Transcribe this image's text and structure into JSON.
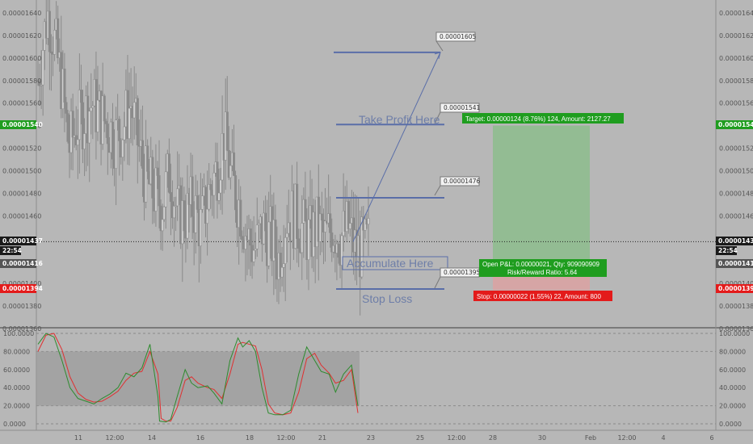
{
  "colors": {
    "background": "#b7b7b7",
    "candle": "#8a8a8a",
    "level_line": "#5a6ea8",
    "profit_zone": "#8fbc8f",
    "loss_zone": "#d9a3a3",
    "target_box": "#1f9d1f",
    "stop_box": "#e31b1b",
    "stoch_k": "#2e8b2e",
    "stoch_d": "#e03030",
    "stoch_band": "#9a9a9a"
  },
  "price_axis": {
    "left_labels": [
      "0.00001640",
      "0.00001620",
      "0.00001600",
      "0.00001580",
      "0.00001560",
      "0.00001540",
      "0.00001520",
      "0.00001500",
      "0.00001480",
      "0.00001460",
      "0.00001437",
      "0.00001416",
      "0.00001400",
      "0.00001394",
      "0.00001380",
      "0.00001360"
    ],
    "right_labels": [
      "0.00001640",
      "0.00001620",
      "0.00001600",
      "0.00001580",
      "0.00001560",
      "0.00001540",
      "0.00001520",
      "0.00001500",
      "0.00001480",
      "0.00001460",
      "0.00001437",
      "0.00001416",
      "0.00001400",
      "0.00001394",
      "0.00001380",
      "0.00001360"
    ],
    "last_price_tag": "0.00001437",
    "time_tag": "22:54",
    "open_price_tag": "0.00001416",
    "target_tag": "0.00001540",
    "stop_tag": "0.00001394"
  },
  "time_axis": {
    "labels": [
      "11",
      "12:00",
      "14",
      "16",
      "18",
      "12:00",
      "21",
      "23",
      "25",
      "12:00",
      "28",
      "30",
      "Feb",
      "12:00",
      "4",
      "6"
    ]
  },
  "annotations": {
    "take_profit_text": "Take Profit Here",
    "accumulate_text": "Accumulate Here",
    "stop_loss_text": "Stop Loss",
    "callout_1605": "0.00001605",
    "callout_1541": "0.00001541",
    "callout_1476": "0.00001476",
    "callout_1395": "0.00001395",
    "target_label": "Target: 0.00000124 (8.76%) 124, Amount: 2127.27",
    "open_pl_label": "Open P&L: 0.00000021, Qty: 909090909",
    "risk_reward_label": "Risk/Reward Ratio: 5.64",
    "stop_label": "Stop: 0.00000022 (1.55%) 22, Amount: 800"
  },
  "oscillator_axis": {
    "left_labels": [
      "100.0000",
      "80.0000",
      "60.0000",
      "40.0000",
      "20.0000",
      "0.0000"
    ],
    "right_labels": [
      "100.0000",
      "80.0000",
      "60.0000",
      "40.0000",
      "20.0000",
      "0.0000"
    ]
  },
  "chart_data": {
    "type": "candlestick",
    "price_levels": {
      "last_price": 1.437e-05,
      "entry": 1.416e-05,
      "target": 1.54e-05,
      "stop": 1.394e-05,
      "level_lines": [
        1.605e-05,
        1.541e-05,
        1.476e-05,
        1.395e-05
      ],
      "accumulate_zone": [
        1.416e-05,
        1.428e-05
      ],
      "ylim": [
        1.355e-05,
        1.65e-05
      ]
    },
    "price_close_path": [
      [
        0.0,
        1.58e-05
      ],
      [
        0.6,
        1.64e-05
      ],
      [
        1.0,
        1.62e-05
      ],
      [
        1.5,
        1.58e-05
      ],
      [
        2.0,
        1.52e-05
      ],
      [
        2.5,
        1.54e-05
      ],
      [
        3.0,
        1.55e-05
      ],
      [
        3.5,
        1.56e-05
      ],
      [
        4.0,
        1.55e-05
      ],
      [
        4.5,
        1.54e-05
      ],
      [
        5.0,
        1.53e-05
      ],
      [
        5.5,
        1.54e-05
      ],
      [
        6.0,
        1.56e-05
      ],
      [
        6.5,
        1.52e-05
      ],
      [
        7.0,
        1.49e-05
      ],
      [
        7.5,
        1.48e-05
      ],
      [
        8.0,
        1.47e-05
      ],
      [
        8.5,
        1.5e-05
      ],
      [
        9.0,
        1.46e-05
      ],
      [
        9.5,
        1.46e-05
      ],
      [
        10.0,
        1.47e-05
      ],
      [
        10.5,
        1.45e-05
      ],
      [
        11.0,
        1.48e-05
      ],
      [
        11.5,
        1.5e-05
      ],
      [
        12.0,
        1.53e-05
      ],
      [
        12.5,
        1.49e-05
      ],
      [
        13.0,
        1.47e-05
      ],
      [
        13.5,
        1.44e-05
      ],
      [
        14.0,
        1.43e-05
      ],
      [
        14.5,
        1.45e-05
      ],
      [
        15.0,
        1.44e-05
      ],
      [
        15.5,
        1.42e-05
      ],
      [
        16.0,
        1.46e-05
      ],
      [
        16.5,
        1.46e-05
      ],
      [
        17.0,
        1.45e-05
      ],
      [
        17.5,
        1.44e-05
      ],
      [
        18.0,
        1.45e-05
      ],
      [
        18.5,
        1.44e-05
      ],
      [
        19.0,
        1.45e-05
      ],
      [
        19.5,
        1.44e-05
      ],
      [
        20.0,
        1.45e-05
      ],
      [
        20.5,
        1.43e-05
      ],
      [
        21.0,
        1.43e-05
      ],
      [
        21.3,
        1.437e-05
      ]
    ],
    "stochastic": {
      "bands": [
        20,
        80
      ],
      "ylim": [
        0,
        100
      ],
      "k": [
        [
          0.0,
          88
        ],
        [
          0.5,
          100
        ],
        [
          1.0,
          96
        ],
        [
          1.5,
          70
        ],
        [
          2.0,
          40
        ],
        [
          2.5,
          28
        ],
        [
          3.0,
          25
        ],
        [
          3.5,
          22
        ],
        [
          4.0,
          28
        ],
        [
          4.5,
          33
        ],
        [
          5.0,
          40
        ],
        [
          5.5,
          56
        ],
        [
          6.0,
          52
        ],
        [
          6.5,
          62
        ],
        [
          7.0,
          88
        ],
        [
          7.5,
          30
        ],
        [
          7.6,
          3
        ],
        [
          8.0,
          2
        ],
        [
          8.3,
          5
        ],
        [
          8.7,
          30
        ],
        [
          9.2,
          60
        ],
        [
          9.6,
          45
        ],
        [
          10.0,
          40
        ],
        [
          10.6,
          42
        ],
        [
          11.0,
          34
        ],
        [
          11.5,
          22
        ],
        [
          12.0,
          70
        ],
        [
          12.5,
          95
        ],
        [
          12.8,
          85
        ],
        [
          13.2,
          92
        ],
        [
          13.6,
          80
        ],
        [
          14.0,
          40
        ],
        [
          14.4,
          12
        ],
        [
          14.8,
          10
        ],
        [
          15.3,
          10
        ],
        [
          15.8,
          15
        ],
        [
          16.3,
          55
        ],
        [
          16.8,
          85
        ],
        [
          17.3,
          70
        ],
        [
          17.7,
          58
        ],
        [
          18.2,
          55
        ],
        [
          18.6,
          35
        ],
        [
          19.1,
          55
        ],
        [
          19.6,
          65
        ],
        [
          20.0,
          20
        ]
      ],
      "d": [
        [
          0.0,
          80
        ],
        [
          0.5,
          98
        ],
        [
          1.0,
          100
        ],
        [
          1.5,
          82
        ],
        [
          2.0,
          52
        ],
        [
          2.5,
          34
        ],
        [
          3.0,
          27
        ],
        [
          3.5,
          24
        ],
        [
          4.0,
          25
        ],
        [
          4.5,
          30
        ],
        [
          5.0,
          36
        ],
        [
          5.5,
          48
        ],
        [
          6.0,
          56
        ],
        [
          6.5,
          58
        ],
        [
          7.0,
          80
        ],
        [
          7.5,
          55
        ],
        [
          7.7,
          6
        ],
        [
          8.0,
          3
        ],
        [
          8.3,
          3
        ],
        [
          8.7,
          18
        ],
        [
          9.2,
          48
        ],
        [
          9.6,
          52
        ],
        [
          10.0,
          45
        ],
        [
          10.6,
          40
        ],
        [
          11.0,
          38
        ],
        [
          11.5,
          28
        ],
        [
          12.0,
          55
        ],
        [
          12.5,
          88
        ],
        [
          12.8,
          90
        ],
        [
          13.2,
          88
        ],
        [
          13.6,
          86
        ],
        [
          14.0,
          60
        ],
        [
          14.4,
          22
        ],
        [
          14.8,
          12
        ],
        [
          15.3,
          10
        ],
        [
          15.8,
          12
        ],
        [
          16.3,
          35
        ],
        [
          16.8,
          72
        ],
        [
          17.3,
          78
        ],
        [
          17.7,
          65
        ],
        [
          18.2,
          56
        ],
        [
          18.6,
          45
        ],
        [
          19.1,
          48
        ],
        [
          19.6,
          60
        ],
        [
          20.0,
          12
        ]
      ]
    }
  }
}
